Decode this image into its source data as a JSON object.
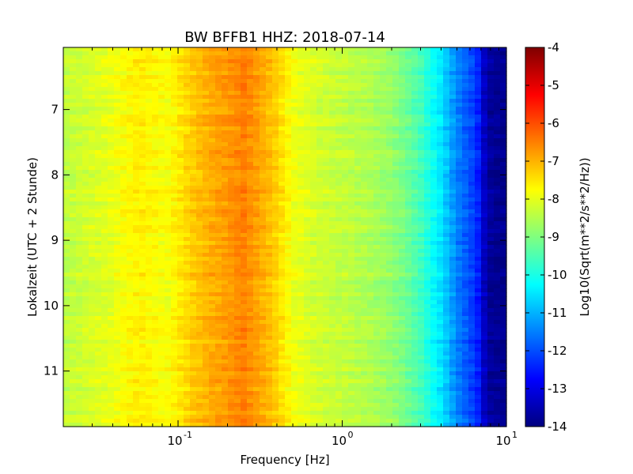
{
  "chart_data": {
    "type": "heatmap",
    "title": "BW BFFB1 HHZ: 2018-07-14",
    "xlabel": "Frequency [Hz]",
    "ylabel": "Lokalzeit (UTC + 2 Stunde)",
    "x_scale": "log",
    "xlim": [
      0.02,
      10
    ],
    "ylim": [
      6.05,
      11.85
    ],
    "x_ticks": [
      {
        "value": 0.1,
        "base": "10",
        "exp": "-1"
      },
      {
        "value": 1,
        "base": "10",
        "exp": "0"
      },
      {
        "value": 10,
        "base": "10",
        "exp": "1"
      }
    ],
    "y_ticks": [
      {
        "value": 7,
        "label": "7"
      },
      {
        "value": 8,
        "label": "8"
      },
      {
        "value": 9,
        "label": "9"
      },
      {
        "value": 10,
        "label": "10"
      },
      {
        "value": 11,
        "label": "11"
      }
    ],
    "colorbar": {
      "label": "Log10(Sqrt(m**2/s**2/Hz))",
      "colormap": "jet",
      "range": [
        -14,
        -4
      ],
      "ticks": [
        "-4",
        "-5",
        "-6",
        "-7",
        "-8",
        "-9",
        "-10",
        "-11",
        "-12",
        "-13",
        "-14"
      ]
    },
    "spectral_profile": {
      "frequency_hz": [
        0.02,
        0.038,
        0.058,
        0.085,
        0.118,
        0.15,
        0.2,
        0.25,
        0.3,
        0.4,
        0.5,
        0.7,
        1.0,
        1.5,
        2.0,
        2.5,
        3.0,
        3.5,
        4.0,
        4.5,
        5.0,
        6.0,
        7.0,
        7.5,
        10
      ],
      "log10_amplitude": [
        -8.4,
        -8.0,
        -7.6,
        -7.85,
        -7.3,
        -7.0,
        -6.75,
        -6.5,
        -6.8,
        -7.3,
        -7.9,
        -8.2,
        -8.35,
        -8.55,
        -8.8,
        -9.2,
        -9.6,
        -10.1,
        -10.5,
        -11.0,
        -11.5,
        -12.0,
        -12.6,
        -13.7,
        -13.9
      ]
    },
    "grid": false
  }
}
